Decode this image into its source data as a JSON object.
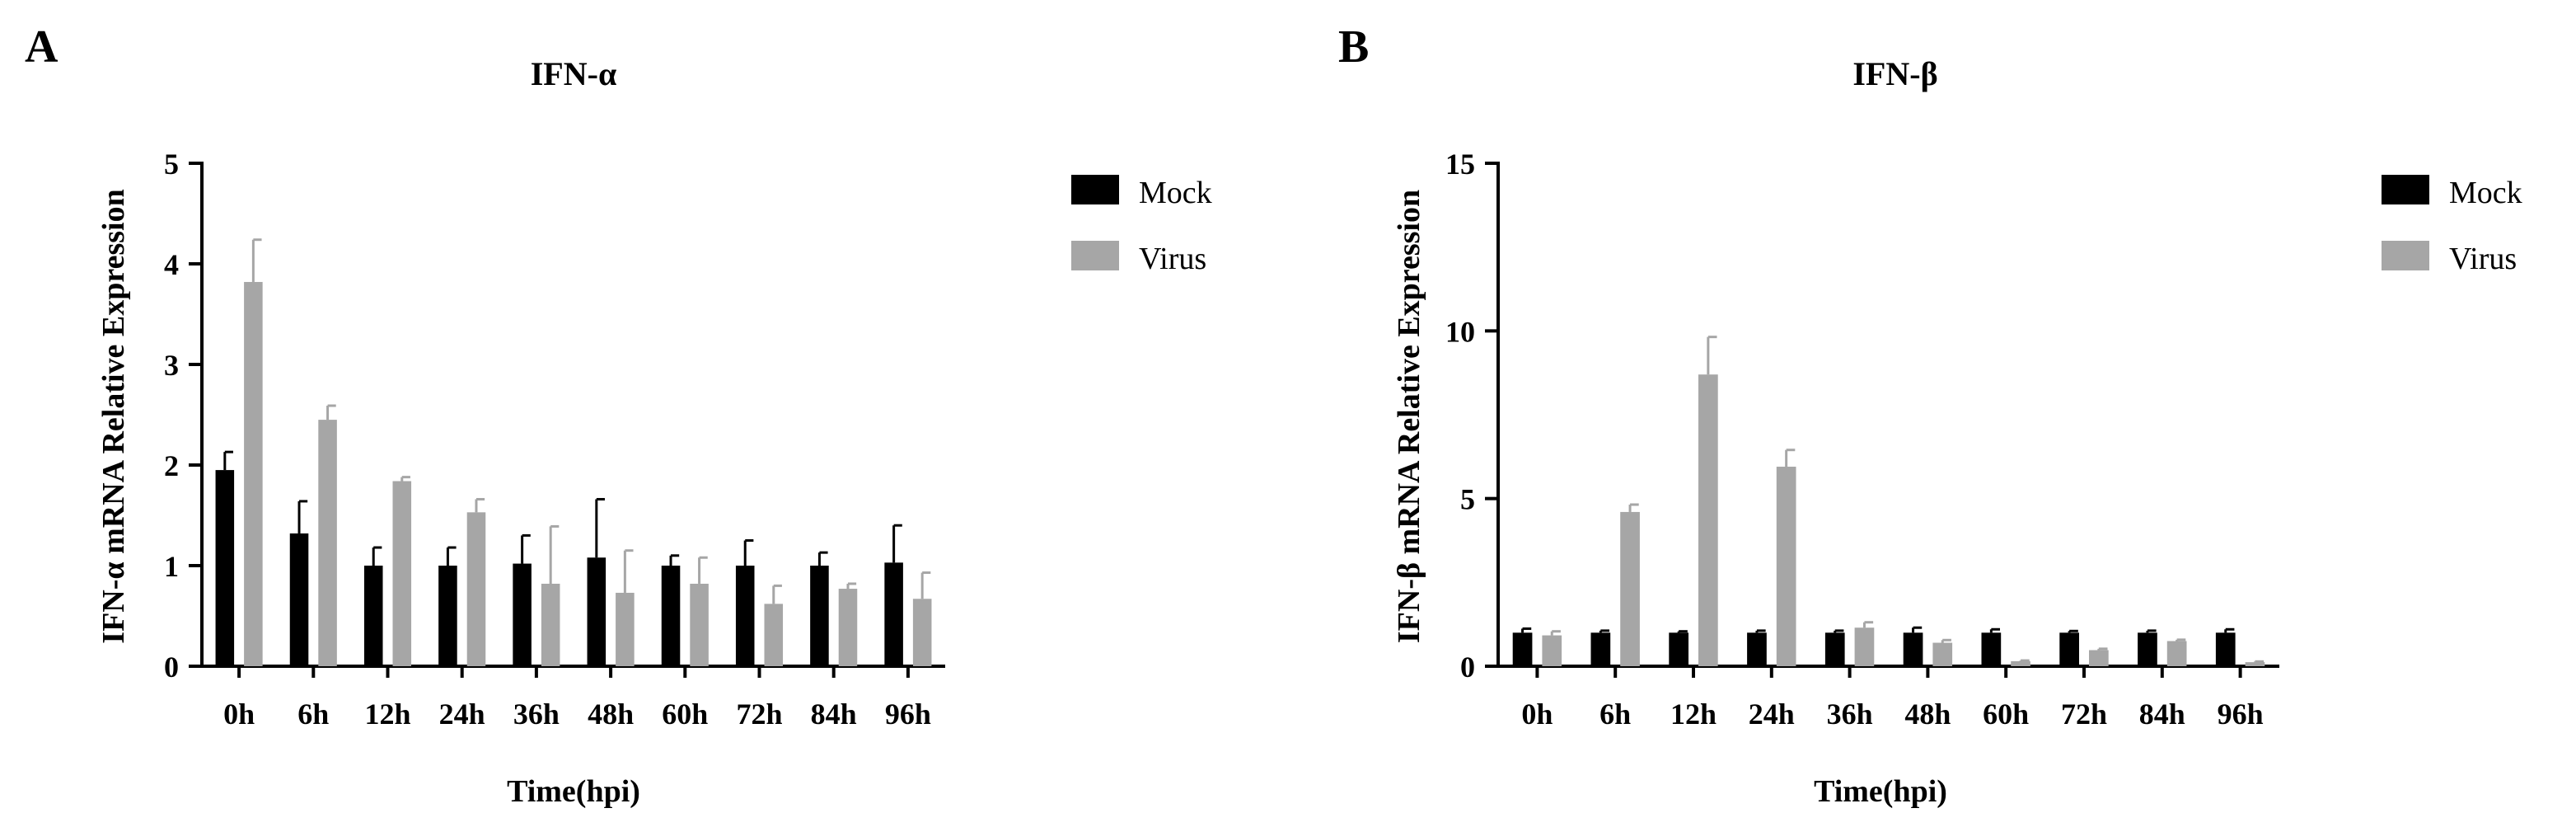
{
  "panels": [
    {
      "letter": "A",
      "chart_data": {
        "type": "bar",
        "title": "IFN-α",
        "xlabel": "Time(hpi)",
        "ylabel": "IFN-α mRNA Relative Expression",
        "categories": [
          "0h",
          "6h",
          "12h",
          "24h",
          "36h",
          "48h",
          "60h",
          "72h",
          "84h",
          "96h"
        ],
        "ylim": [
          0,
          5
        ],
        "yticks": [
          0,
          1,
          2,
          3,
          4,
          5
        ],
        "series": [
          {
            "name": "Mock",
            "color": "#000000",
            "values": [
              1.95,
              1.32,
              1.0,
              1.0,
              1.02,
              1.08,
              1.0,
              1.0,
              1.0,
              1.03
            ],
            "errors": [
              0.18,
              0.32,
              0.18,
              0.18,
              0.28,
              0.58,
              0.1,
              0.25,
              0.13,
              0.37
            ]
          },
          {
            "name": "Virus",
            "color": "#a6a6a6",
            "values": [
              3.82,
              2.45,
              1.84,
              1.53,
              0.82,
              0.73,
              0.82,
              0.62,
              0.77,
              0.67
            ],
            "errors": [
              0.42,
              0.14,
              0.04,
              0.13,
              0.57,
              0.42,
              0.26,
              0.18,
              0.05,
              0.26
            ]
          }
        ],
        "legend_position": "right"
      }
    },
    {
      "letter": "B",
      "chart_data": {
        "type": "bar",
        "title": "IFN-β",
        "xlabel": "Time(hpi)",
        "ylabel": "IFN-β mRNA Relative Expression",
        "categories": [
          "0h",
          "6h",
          "12h",
          "24h",
          "36h",
          "48h",
          "60h",
          "72h",
          "84h",
          "96h"
        ],
        "ylim": [
          0,
          15
        ],
        "yticks": [
          0,
          5,
          10,
          15
        ],
        "series": [
          {
            "name": "Mock",
            "color": "#000000",
            "values": [
              1.0,
              1.0,
              1.0,
              1.0,
              1.0,
              1.0,
              1.0,
              1.0,
              1.0,
              1.0
            ],
            "errors": [
              0.12,
              0.06,
              0.04,
              0.06,
              0.06,
              0.15,
              0.1,
              0.05,
              0.06,
              0.1
            ]
          },
          {
            "name": "Virus",
            "color": "#a6a6a6",
            "values": [
              0.92,
              4.6,
              8.7,
              5.95,
              1.15,
              0.7,
              0.15,
              0.48,
              0.75,
              0.12
            ],
            "errors": [
              0.12,
              0.22,
              1.12,
              0.5,
              0.16,
              0.08,
              0.02,
              0.04,
              0.04,
              0.02
            ]
          }
        ],
        "legend_position": "right"
      }
    }
  ]
}
